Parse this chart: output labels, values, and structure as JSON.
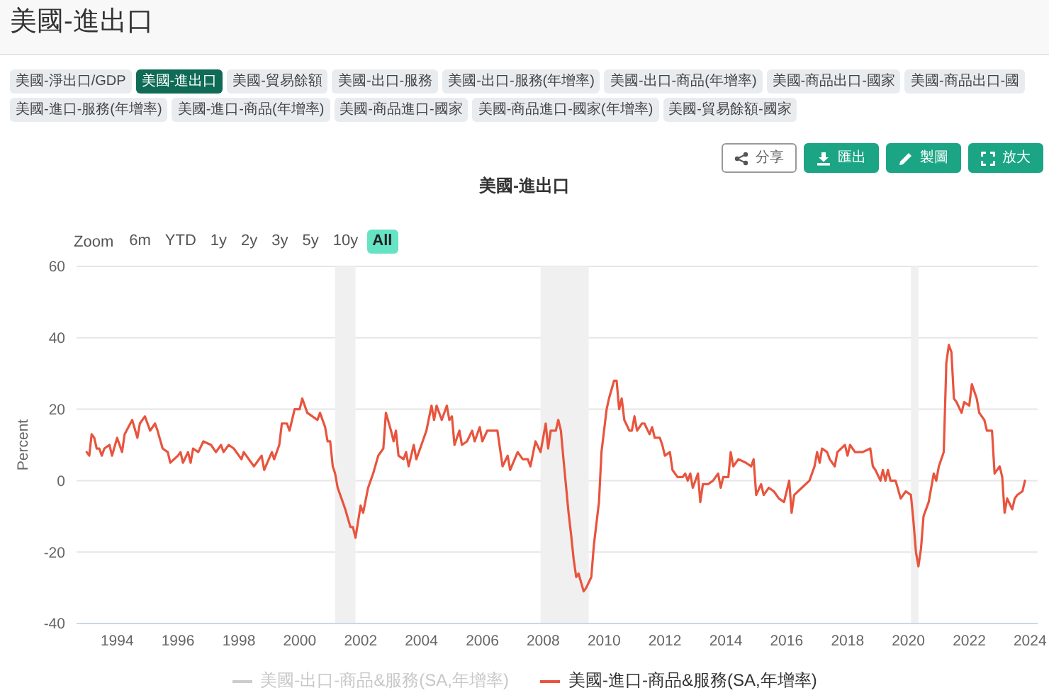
{
  "chart_data": {
    "type": "line",
    "title": "美國-進出口",
    "ylabel": "Percent",
    "annotations": [
      "美國-淨出口/GDP",
      "美國-進出口",
      "美國-貿易餘額",
      "美國-出口-服務",
      "美國-出口-服務(年增率)",
      "美國-出口-商品(年增率)",
      "美國-商品出口-國家",
      "美國-商品出口-國",
      "美國-進口-服務(年增率)",
      "美國-進口-商品(年增率)",
      "美國-商品進口-國家",
      "美國-商品進口-國家(年增率)",
      "美國-貿易餘額-國家",
      "分享",
      "匯出",
      "製圖",
      "放大",
      "Zoom",
      "6m",
      "YTD",
      "1y",
      "2y",
      "3y",
      "5y",
      "10y",
      "All"
    ],
    "x": [
      "1993-01",
      "1993-02",
      "1993-03",
      "1993-04",
      "1993-05",
      "1993-06",
      "1993-07",
      "1993-08",
      "1993-10",
      "1993-11",
      "1994-01",
      "1994-03",
      "1994-04",
      "1994-07",
      "1994-09",
      "1994-10",
      "1994-12",
      "1995-02",
      "1995-04",
      "1995-05",
      "1995-07",
      "1995-09",
      "1995-10",
      "1996-01",
      "1996-02",
      "1996-03",
      "1996-05",
      "1996-06",
      "1996-07",
      "1996-09",
      "1996-11",
      "1997-02",
      "1997-04",
      "1997-06",
      "1997-07",
      "1997-09",
      "1997-11",
      "1998-02",
      "1998-03",
      "1998-07",
      "1998-08",
      "1998-10",
      "1998-11",
      "1999-02",
      "1999-03",
      "1999-05",
      "1999-06",
      "1999-08",
      "1999-09",
      "1999-11",
      "2000-01",
      "2000-02",
      "2000-04",
      "2000-06",
      "2000-08",
      "2000-09",
      "2000-11",
      "2000-12",
      "2001-01",
      "2001-02",
      "2001-03",
      "2001-04",
      "2001-06",
      "2001-07",
      "2001-09",
      "2001-10",
      "2001-11",
      "2002-01",
      "2002-02",
      "2002-04",
      "2002-06",
      "2002-08",
      "2002-10",
      "2002-11",
      "2003-01",
      "2003-02",
      "2003-03",
      "2003-04",
      "2003-06",
      "2003-07",
      "2003-08",
      "2003-10",
      "2003-11",
      "2004-01",
      "2004-03",
      "2004-05",
      "2004-06",
      "2004-07",
      "2004-09",
      "2004-11",
      "2004-12",
      "2005-01",
      "2005-02",
      "2005-04",
      "2005-05",
      "2005-07",
      "2005-09",
      "2005-10",
      "2005-12",
      "2006-01",
      "2006-03",
      "2006-04",
      "2006-07",
      "2006-09",
      "2006-11",
      "2006-12",
      "2007-03",
      "2007-05",
      "2007-07",
      "2007-08",
      "2007-10",
      "2007-12",
      "2008-02",
      "2008-03",
      "2008-04",
      "2008-06",
      "2008-07",
      "2008-08",
      "2008-09",
      "2008-11",
      "2008-12",
      "2009-01",
      "2009-02",
      "2009-03",
      "2009-05",
      "2009-06",
      "2009-08",
      "2009-09",
      "2009-11",
      "2009-12",
      "2010-02",
      "2010-03",
      "2010-05",
      "2010-06",
      "2010-07",
      "2010-08",
      "2010-09",
      "2010-11",
      "2010-12",
      "2011-01",
      "2011-02",
      "2011-04",
      "2011-05",
      "2011-07",
      "2011-08",
      "2011-09",
      "2011-11",
      "2011-12",
      "2012-01",
      "2012-03",
      "2012-04",
      "2012-06",
      "2012-08",
      "2012-09",
      "2012-10",
      "2012-11",
      "2012-12",
      "2013-02",
      "2013-03",
      "2013-04",
      "2013-06",
      "2013-08",
      "2013-10",
      "2013-11",
      "2013-12",
      "2014-02",
      "2014-03",
      "2014-04",
      "2014-06",
      "2014-09",
      "2014-11",
      "2014-12",
      "2015-01",
      "2015-03",
      "2015-04",
      "2015-06",
      "2015-08",
      "2015-10",
      "2015-12",
      "2016-02",
      "2016-03",
      "2016-04",
      "2016-07",
      "2016-10",
      "2016-12",
      "2017-01",
      "2017-02",
      "2017-03",
      "2017-05",
      "2017-06",
      "2017-08",
      "2017-09",
      "2017-12",
      "2018-01",
      "2018-02",
      "2018-04",
      "2018-07",
      "2018-10",
      "2018-11",
      "2018-12",
      "2019-02",
      "2019-03",
      "2019-04",
      "2019-05",
      "2019-06",
      "2019-08",
      "2019-10",
      "2019-12",
      "2020-02",
      "2020-03",
      "2020-04",
      "2020-05",
      "2020-06",
      "2020-07",
      "2020-09",
      "2020-11",
      "2020-12",
      "2021-01",
      "2021-03",
      "2021-04",
      "2021-05",
      "2021-06",
      "2021-07",
      "2021-08",
      "2021-10",
      "2021-11",
      "2022-01",
      "2022-02",
      "2022-04",
      "2022-05",
      "2022-07",
      "2022-08",
      "2022-10",
      "2022-11",
      "2023-01",
      "2023-02",
      "2023-03",
      "2023-04",
      "2023-06",
      "2023-07",
      "2023-08",
      "2023-10",
      "2023-11"
    ],
    "series": [
      {
        "name": "美國-出口-商品&服務(SA,年增率)",
        "color": "#cccccc",
        "values": [
          null,
          null,
          null,
          null,
          null,
          null,
          null,
          null,
          null,
          null,
          null,
          null,
          null,
          null,
          null,
          null,
          null,
          null,
          null,
          null,
          null,
          null,
          null,
          null,
          null,
          null,
          null,
          null,
          null,
          null,
          null,
          null,
          null,
          null,
          null,
          null,
          null,
          null,
          null,
          null,
          null,
          null,
          null,
          null,
          null,
          null,
          null,
          null,
          null,
          null,
          null,
          null,
          null,
          null,
          null,
          null,
          null,
          null,
          null,
          null,
          null,
          null,
          null,
          null,
          null,
          null,
          null,
          null,
          null,
          null,
          null,
          null,
          null,
          null,
          null,
          null,
          null,
          null,
          null,
          null,
          null,
          null,
          null,
          null,
          null,
          null,
          null,
          null,
          null,
          null,
          null,
          null,
          null,
          null,
          null,
          null,
          null,
          null,
          null,
          null,
          null,
          null,
          null,
          null,
          null,
          null,
          null,
          null,
          null,
          null,
          null,
          null,
          null,
          null,
          null,
          null,
          null,
          null,
          null,
          null,
          null,
          null,
          null,
          null,
          null,
          null,
          null,
          null,
          null,
          null,
          null,
          null,
          null,
          null,
          null,
          null,
          null,
          null,
          null,
          null,
          null,
          null,
          null,
          null,
          null,
          null,
          null,
          null,
          null,
          null,
          null,
          null,
          null,
          null,
          null,
          null,
          null,
          null,
          null,
          null,
          null,
          null,
          null,
          null,
          null,
          null,
          null,
          null,
          null,
          null,
          null,
          null,
          null,
          null,
          null,
          null,
          null,
          null,
          null,
          null,
          null,
          null,
          null,
          null,
          null,
          null,
          null,
          null,
          null,
          null,
          null,
          null,
          null,
          null,
          null,
          null,
          null,
          null,
          null,
          null,
          null,
          null,
          null,
          null,
          null,
          null,
          null,
          null,
          null,
          null,
          null,
          null,
          null,
          null,
          null,
          null,
          null,
          null,
          null,
          null,
          null,
          null,
          null,
          null,
          null,
          null,
          null,
          null,
          null,
          null,
          null,
          null,
          null,
          null,
          null,
          null,
          null,
          null,
          null,
          null,
          null,
          null,
          null
        ]
      },
      {
        "name": "美國-進口-商品&服務(SA,年增率)",
        "color": "#e8543e",
        "values": [
          8,
          7,
          13,
          12,
          9,
          9,
          7,
          9,
          10,
          7,
          12,
          8,
          13,
          17,
          12,
          16,
          18,
          14,
          16,
          14,
          9,
          8,
          5,
          7,
          8,
          5,
          8,
          5,
          9,
          8,
          11,
          10,
          8,
          10,
          8,
          10,
          9,
          6,
          8,
          4,
          5,
          7,
          3,
          8,
          6,
          10,
          16,
          16,
          14,
          20,
          20,
          23,
          19,
          18,
          17,
          19,
          15,
          11,
          11,
          4,
          2,
          -2,
          -6,
          -8,
          -13,
          -13,
          -16,
          -7,
          -9,
          -2,
          2,
          7,
          9,
          19,
          14,
          11,
          14,
          7,
          6,
          8,
          4,
          10,
          6,
          10,
          14,
          21,
          17,
          21,
          17,
          21,
          17,
          18,
          10,
          14,
          10,
          11,
          14,
          11,
          15,
          11,
          14,
          14,
          14,
          4,
          7,
          3,
          8,
          6,
          6,
          4,
          11,
          8,
          16,
          9,
          14,
          14,
          17,
          14,
          6,
          -9,
          -15,
          -22,
          -27,
          -26,
          -31,
          -30,
          -27,
          -18,
          -6,
          8,
          20,
          23,
          28,
          28,
          20,
          23,
          17,
          14,
          14,
          18,
          14,
          16,
          16,
          13,
          15,
          12,
          12,
          10,
          7,
          8,
          3,
          1,
          1,
          2,
          0,
          2,
          -2,
          2,
          -6,
          -1,
          -1,
          0,
          2,
          -2,
          1,
          1,
          8,
          4,
          6,
          5,
          4,
          6,
          -4,
          -1,
          -4,
          -2,
          -3,
          -5,
          -6,
          0,
          -9,
          -4,
          -2,
          0,
          4,
          8,
          5,
          9,
          8,
          6,
          4,
          8,
          10,
          7,
          10,
          8,
          8,
          9,
          4,
          3,
          0,
          3,
          0,
          3,
          0,
          0,
          -5,
          -3,
          -4,
          -11,
          -20,
          -24,
          -19,
          -10,
          -6,
          2,
          0,
          4,
          8,
          33,
          38,
          36,
          23,
          22,
          19,
          22,
          21,
          27,
          23,
          19,
          17,
          14,
          14,
          2,
          4,
          1,
          -9,
          -5,
          -8,
          -5,
          -4,
          -3,
          0
        ]
      }
    ],
    "xlim": [
      "1992-09",
      "2024-04"
    ],
    "xticks": [
      "1994",
      "1996",
      "1998",
      "2000",
      "2002",
      "2004",
      "2006",
      "2008",
      "2010",
      "2012",
      "2014",
      "2016",
      "2018",
      "2020",
      "2022",
      "2024"
    ],
    "ylim": [
      -40,
      60
    ],
    "yticks": [
      -40,
      -20,
      0,
      20,
      40,
      60
    ],
    "bands": [
      {
        "axis": "x",
        "from": "2001-03",
        "to": "2001-11",
        "color": "#f0f0f0"
      },
      {
        "axis": "x",
        "from": "2007-12",
        "to": "2009-07",
        "color": "#f0f0f0"
      },
      {
        "axis": "x",
        "from": "2020-02",
        "to": "2020-05",
        "color": "#f0f0f0"
      }
    ],
    "grid": "y",
    "legend": "bottom"
  }
}
